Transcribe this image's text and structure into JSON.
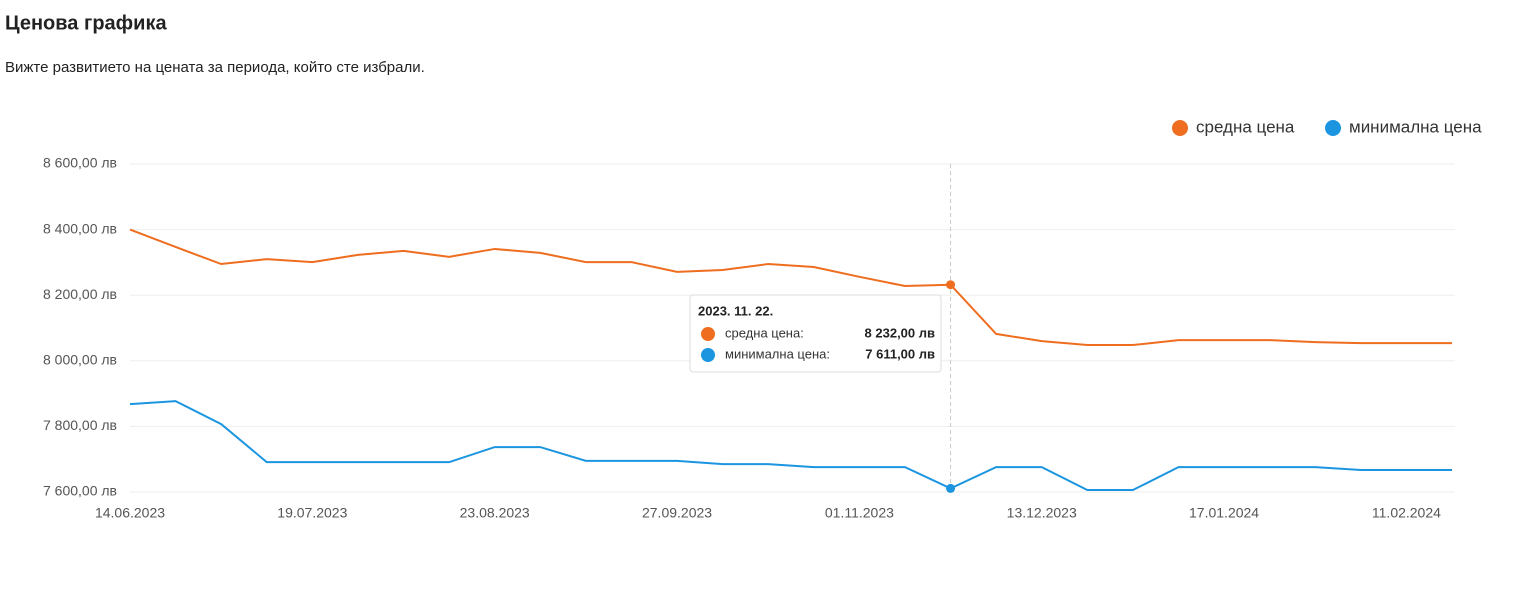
{
  "header": {
    "title": "Ценова графика",
    "subtitle": "Вижте развитието на цената за периода, който сте избрали."
  },
  "chart_data": {
    "type": "line",
    "categories": [
      "14.06.2023",
      null,
      null,
      null,
      "19.07.2023",
      null,
      null,
      null,
      "23.08.2023",
      null,
      null,
      null,
      "27.09.2023",
      null,
      null,
      null,
      "01.11.2023",
      null,
      null,
      null,
      "13.12.2023",
      null,
      null,
      null,
      "17.01.2024",
      null,
      null,
      null,
      "11.02.2024",
      null
    ],
    "series": [
      {
        "name": "средна цена",
        "color": "#ee6d1f",
        "values": [
          8400,
          8347,
          8295,
          8310,
          8301,
          8323,
          8335,
          8317,
          8341,
          8329,
          8301,
          8301,
          8271,
          8277,
          8295,
          8286,
          8256,
          8228,
          8232,
          8082,
          8060,
          8048,
          8048,
          8063,
          8063,
          8063,
          8057,
          8054,
          8054,
          8054
        ]
      },
      {
        "name": "минимална цена",
        "color": "#1b95e0",
        "values": [
          7868,
          7877,
          7807,
          7691,
          7691,
          7691,
          7691,
          7691,
          7737,
          7737,
          7695,
          7695,
          7695,
          7685,
          7685,
          7676,
          7676,
          7676,
          7611,
          7676,
          7676,
          7606,
          7606,
          7676,
          7676,
          7676,
          7676,
          7667,
          7667,
          7667
        ]
      }
    ],
    "ylim": [
      7600,
      8600
    ],
    "yticks": [
      {
        "value": 7600,
        "label": "7 600,00 лв"
      },
      {
        "value": 7800,
        "label": "7 800,00 лв"
      },
      {
        "value": 8000,
        "label": "8 000,00 лв"
      },
      {
        "value": 8200,
        "label": "8 200,00 лв"
      },
      {
        "value": 8400,
        "label": "8 400,00 лв"
      },
      {
        "value": 8600,
        "label": "8 600,00 лв"
      }
    ],
    "grid": true,
    "legend": "top-right",
    "tooltip": {
      "title": "2023. 11. 22.",
      "rows": [
        {
          "label": "средна цена:",
          "value": 8232,
          "value_label": "8 232,00 лв"
        },
        {
          "label": "минимална цена:",
          "value": 7611,
          "value_label": "7 611,00 лв"
        }
      ]
    }
  }
}
